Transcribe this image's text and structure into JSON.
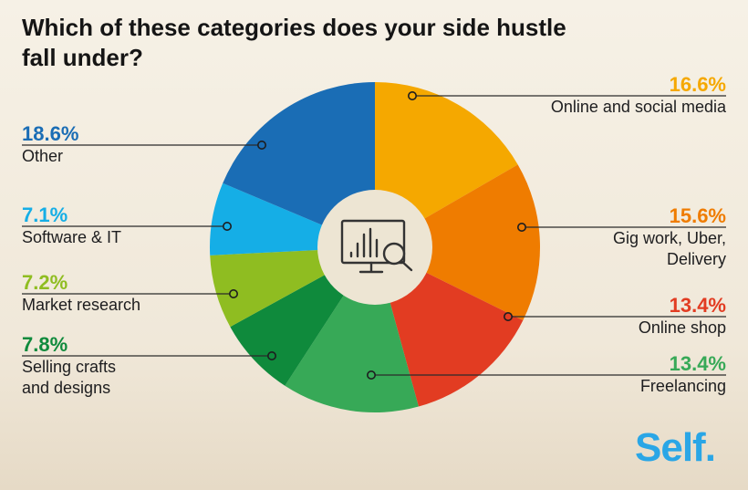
{
  "title_line1": "Which of these categories does your side hustle",
  "title_line2": "fall under?",
  "logo_text": "Self.",
  "center_icon": "chart-magnifier-icon",
  "chart_data": {
    "type": "pie",
    "title": "Which of these categories does your side hustle fall under?",
    "unit": "%",
    "slices": [
      {
        "label": "Online and social media",
        "value": 16.6,
        "display": "16.6%",
        "color": "#f5a800",
        "lines": [
          "Online and social media"
        ]
      },
      {
        "label": "Gig work, Uber, Delivery",
        "value": 15.6,
        "display": "15.6%",
        "color": "#ef7c00",
        "lines": [
          "Gig work, Uber,",
          "Delivery"
        ]
      },
      {
        "label": "Online shop",
        "value": 13.4,
        "display": "13.4%",
        "color": "#e23c22",
        "lines": [
          "Online shop"
        ]
      },
      {
        "label": "Freelancing",
        "value": 13.4,
        "display": "13.4%",
        "color": "#37a957",
        "lines": [
          "Freelancing"
        ]
      },
      {
        "label": "Selling crafts and designs",
        "value": 7.8,
        "display": "7.8%",
        "color": "#0f8a3c",
        "lines": [
          "Selling crafts",
          "and designs"
        ]
      },
      {
        "label": "Market research",
        "value": 7.2,
        "display": "7.2%",
        "color": "#8fbd21",
        "lines": [
          "Market research"
        ]
      },
      {
        "label": "Software & IT",
        "value": 7.1,
        "display": "7.1%",
        "color": "#15aee6",
        "lines": [
          "Software & IT"
        ]
      },
      {
        "label": "Other",
        "value": 18.6,
        "display": "18.6%",
        "color": "#1a6db5",
        "lines": [
          "Other"
        ]
      }
    ]
  }
}
